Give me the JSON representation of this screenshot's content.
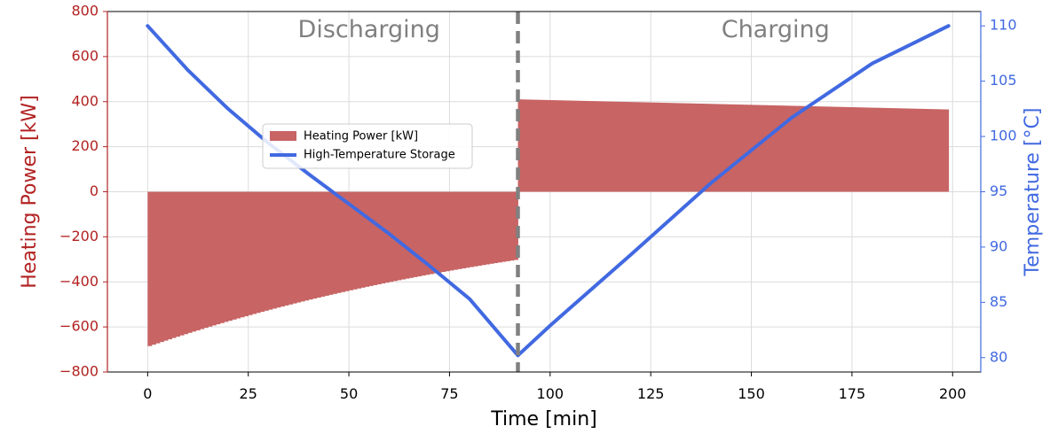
{
  "chart_data": {
    "type": "bar",
    "xlabel": "Time [min]",
    "ylabel_left": "Heating Power [kW]",
    "ylabel_right": "Temperature [°C]",
    "xlim": [
      -10,
      207
    ],
    "ylim_left": [
      -800,
      800
    ],
    "ylim_right": [
      78.7,
      111.3
    ],
    "xticks": [
      0,
      25,
      50,
      75,
      100,
      125,
      150,
      175,
      200
    ],
    "yticks_left": [
      -800,
      -600,
      -400,
      -200,
      0,
      200,
      400,
      600,
      800
    ],
    "yticks_right": [
      80,
      85,
      90,
      95,
      100,
      105,
      110
    ],
    "grid": true,
    "legend_position": "center-left",
    "annotations": [
      {
        "text": "Discharging",
        "x": 55,
        "y": 715
      },
      {
        "text": "Charging",
        "x": 156,
        "y": 715
      }
    ],
    "split_line": {
      "x": 92,
      "color": "#808080",
      "style": "dashed"
    },
    "series": [
      {
        "name": "Heating Power [kW]",
        "kind": "bar",
        "axis": "left",
        "color": "#c86464",
        "segments": [
          {
            "x_start": 0,
            "x_end": 92,
            "start_value": -685,
            "end_value": -300,
            "curve": "exponential"
          },
          {
            "x_start": 92,
            "x_end": 199,
            "start_value": 410,
            "end_value": 365,
            "curve": "linear"
          }
        ]
      },
      {
        "name": "High-Temperature Storage",
        "kind": "line",
        "axis": "right",
        "color": "#4169e1",
        "x": [
          0,
          10,
          20,
          30,
          40,
          50,
          60,
          70,
          80,
          92,
          100,
          120,
          140,
          160,
          180,
          199
        ],
        "y": [
          110,
          106.0,
          102.5,
          99.4,
          96.6,
          93.9,
          91.2,
          88.3,
          85.3,
          80.2,
          82.9,
          89.3,
          95.8,
          101.7,
          106.6,
          110
        ]
      }
    ]
  }
}
